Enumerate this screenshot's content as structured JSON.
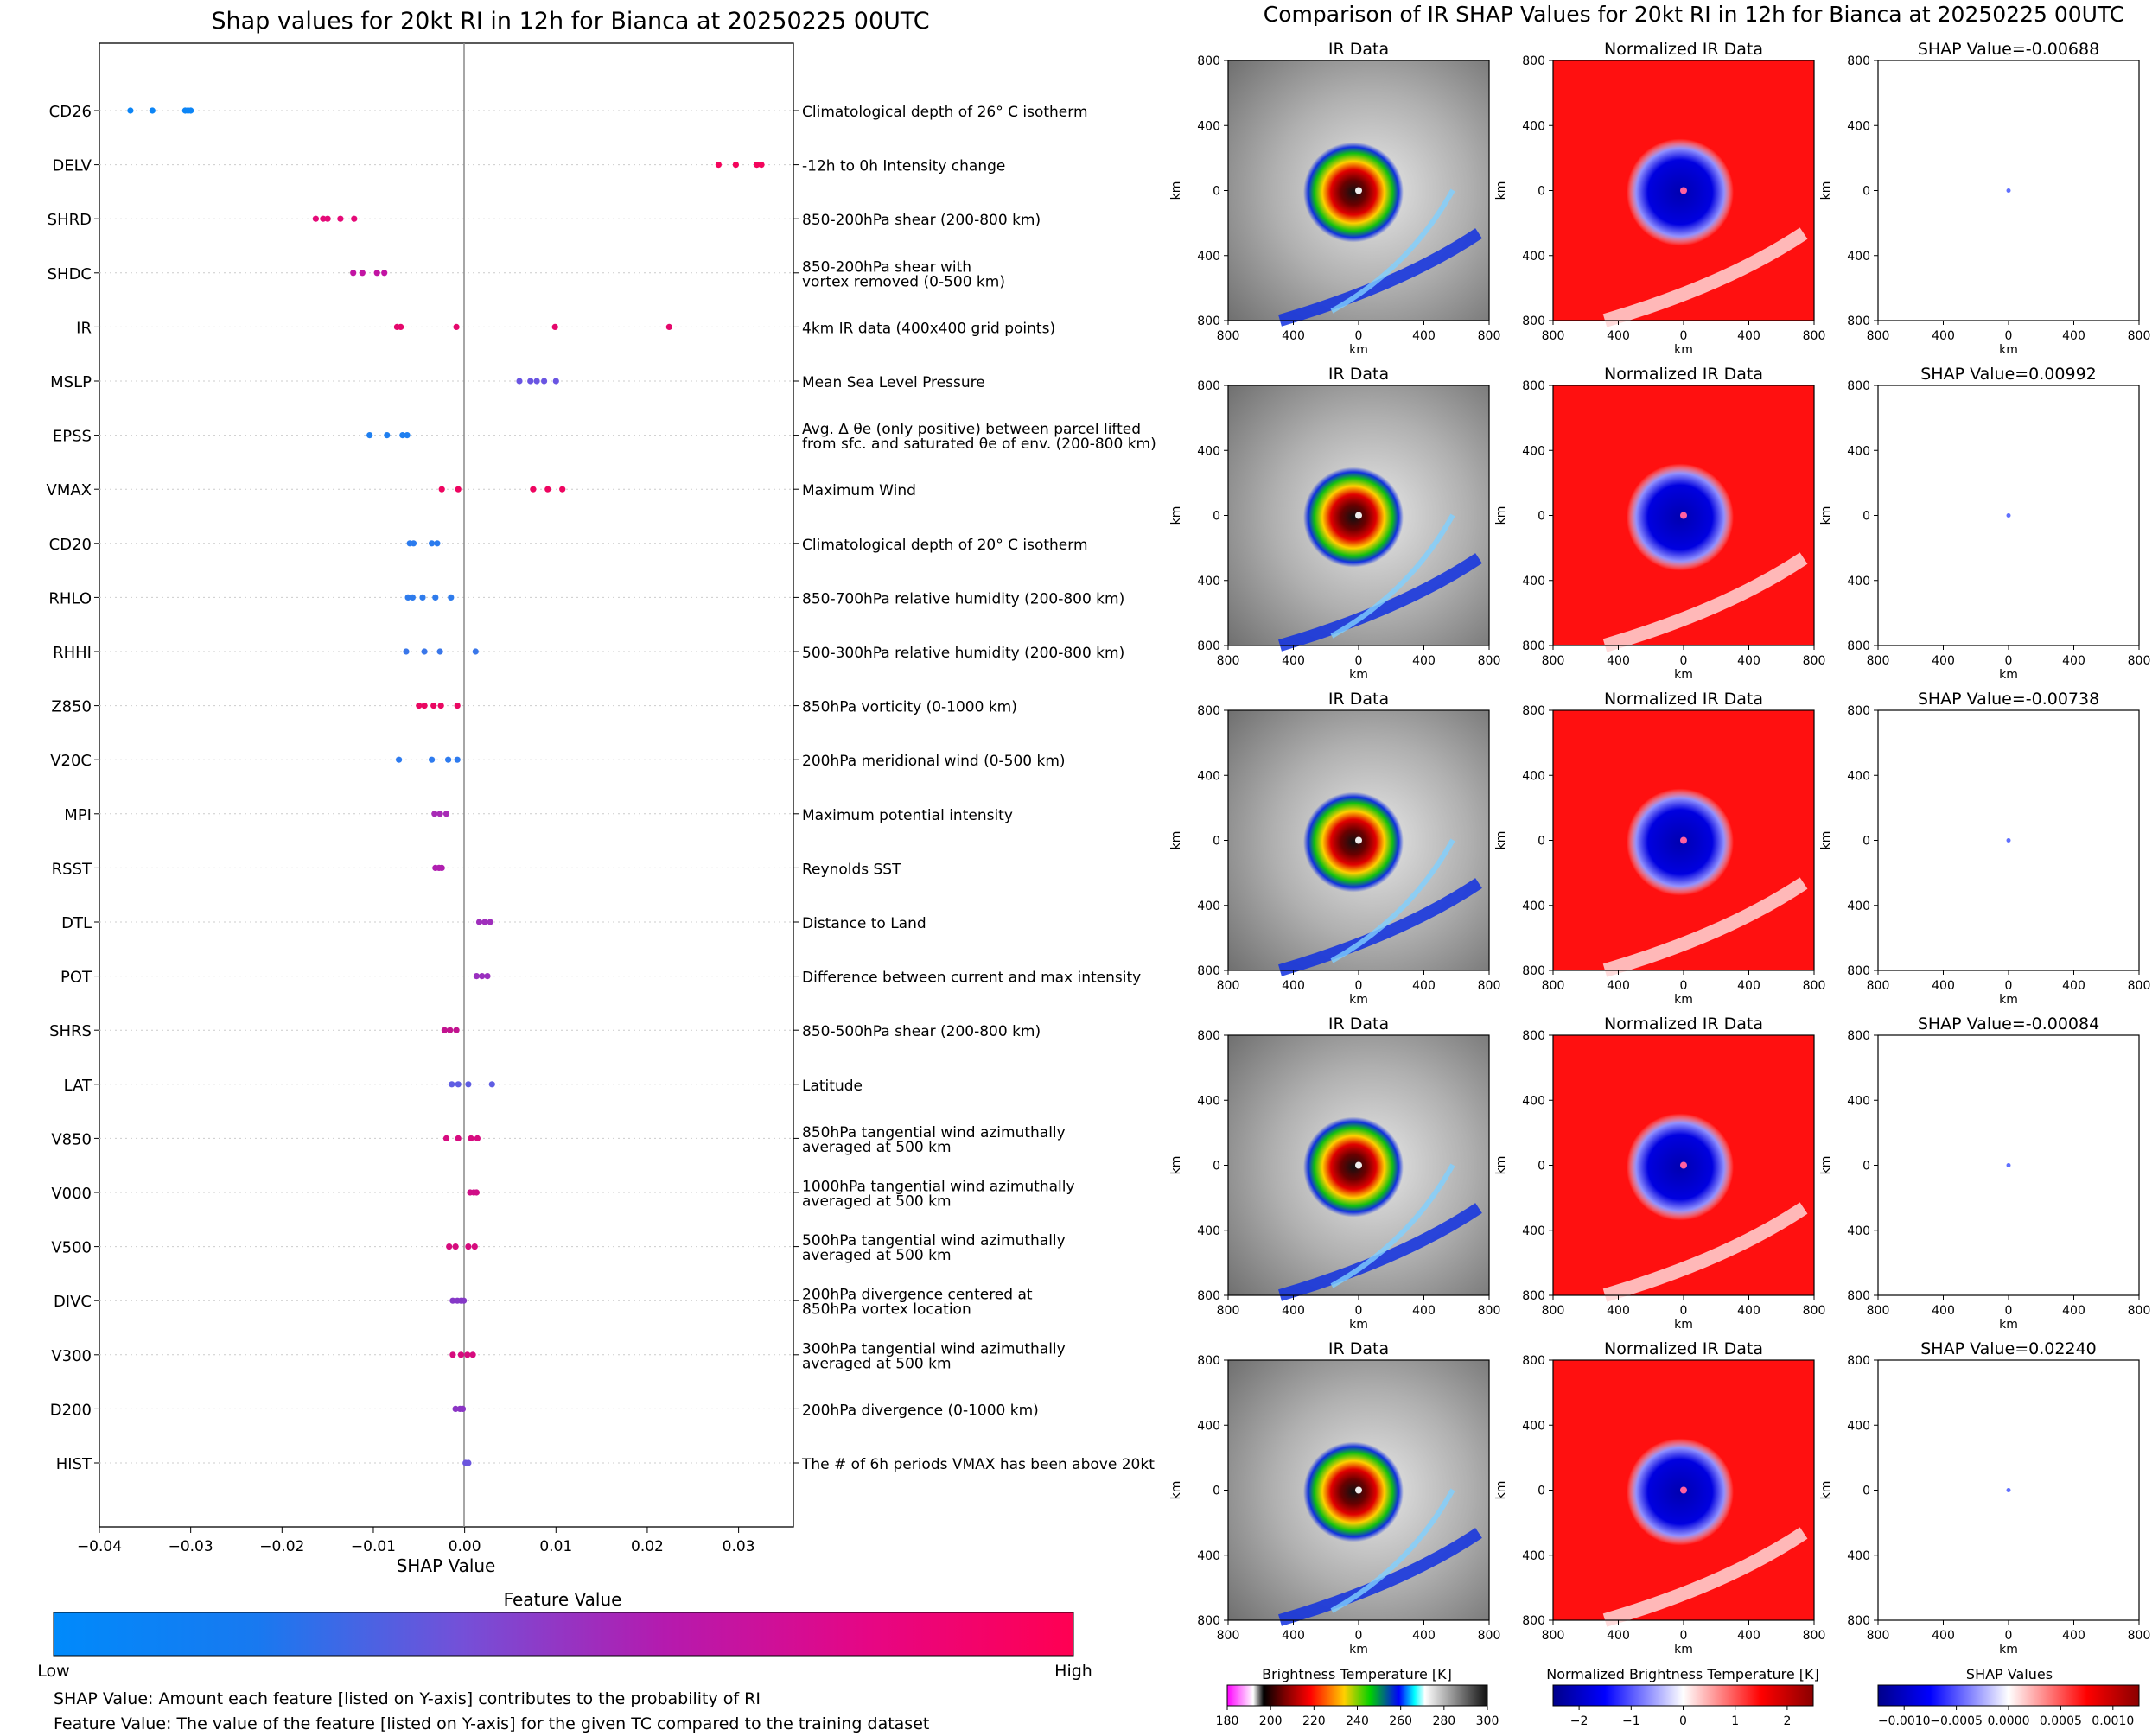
{
  "left_title": "Shap values for 20kt RI in 12h for Bianca at 20250225 00UTC",
  "right_title": "Comparison of IR SHAP Values for 20kt RI in 12h for Bianca at 20250225 00UTC",
  "colorbar": {
    "title": "Feature Value",
    "low_label": "Low",
    "high_label": "High",
    "low_color": "#008afb",
    "high_color": "#ff0052"
  },
  "notes": [
    "SHAP Value: Amount each feature [listed on Y-axis] contributes to the probability of RI",
    "Feature Value: The value of the feature [listed on Y-axis] for the given TC compared to the training dataset"
  ],
  "panels": {
    "col_titles": [
      "IR Data",
      "Normalized IR Data"
    ],
    "shap_title_prefix": "SHAP Value=",
    "shap_values": [
      "-0.00688",
      "0.00992",
      "-0.00738",
      "-0.00084",
      "0.02240"
    ],
    "axis_label": "km",
    "tick_labels": [
      "800",
      "400",
      "0",
      "400",
      "800"
    ],
    "cbar_ir": {
      "title": "Brightness Temperature [K]",
      "ticks": [
        "180",
        "200",
        "220",
        "240",
        "260",
        "280",
        "300"
      ]
    },
    "cbar_norm": {
      "title": "Normalized Brightness Temperature [K]",
      "ticks": [
        "−2",
        "−1",
        "0",
        "1",
        "2"
      ]
    },
    "cbar_shap": {
      "title": "SHAP Values",
      "ticks": [
        "−0.0010",
        "−0.0005",
        "0.0000",
        "0.0005",
        "0.0010"
      ]
    }
  },
  "chart_data": {
    "type": "scatter",
    "title": "Shap values for 20kt RI in 12h for Bianca at 20250225 00UTC",
    "xlabel": "SHAP Value",
    "ylabel": "",
    "xlim": [
      -0.04,
      0.036
    ],
    "x_ticks": [
      -0.04,
      -0.03,
      -0.02,
      -0.01,
      0.0,
      0.01,
      0.02,
      0.03
    ],
    "x_tick_labels": [
      "−0.04",
      "−0.03",
      "−0.02",
      "−0.01",
      "0.00",
      "0.01",
      "0.02",
      "0.03"
    ],
    "grid": "horizontal dotted",
    "zero_line": 0.0,
    "features": [
      {
        "name": "CD26",
        "description": [
          "Climatological depth of 26° C isotherm"
        ],
        "color": "#0c85f6",
        "shap": [
          -0.0366,
          -0.0342,
          -0.0306,
          -0.0303,
          -0.03
        ]
      },
      {
        "name": "DELV",
        "description": [
          "-12h to 0h Intensity change"
        ],
        "color": "#f4055c",
        "shap": [
          0.0278,
          0.0297,
          0.032,
          0.0325
        ]
      },
      {
        "name": "SHRD",
        "description": [
          "850-200hPa shear (200-800 km)"
        ],
        "color": "#e50a78",
        "shap": [
          -0.0163,
          -0.0155,
          -0.015,
          -0.0136,
          -0.0121
        ]
      },
      {
        "name": "SHDC",
        "description": [
          "850-200hPa shear with",
          "vortex removed (0-500 km)"
        ],
        "color": "#c214a3",
        "shap": [
          -0.0122,
          -0.0112,
          -0.0096,
          -0.0088
        ]
      },
      {
        "name": "IR",
        "description": [
          "4km IR data (400x400 grid points)"
        ],
        "color": "#e5086c",
        "shap": [
          -0.0074,
          -0.007,
          -0.0009,
          0.0099,
          0.0224
        ]
      },
      {
        "name": "MSLP",
        "description": [
          "Mean Sea Level Pressure"
        ],
        "color": "#6a55e2",
        "shap": [
          0.006,
          0.0072,
          0.0079,
          0.0087,
          0.01
        ]
      },
      {
        "name": "EPSS",
        "description": [
          "Avg. Δ θe (only positive) between parcel lifted",
          "from sfc. and saturated θe of env. (200-800 km)"
        ],
        "color": "#1f7ff0",
        "shap": [
          -0.0104,
          -0.0085,
          -0.0068,
          -0.0063
        ]
      },
      {
        "name": "VMAX",
        "description": [
          "Maximum Wind"
        ],
        "color": "#ee0560",
        "shap": [
          -0.0025,
          -0.0007,
          0.0075,
          0.0091,
          0.0107
        ]
      },
      {
        "name": "CD20",
        "description": [
          "Climatological depth of 20° C isotherm"
        ],
        "color": "#2b7bee",
        "shap": [
          -0.006,
          -0.0056,
          -0.0036,
          -0.003
        ]
      },
      {
        "name": "RHLO",
        "description": [
          "850-700hPa relative humidity (200-800 km)"
        ],
        "color": "#2e7bec",
        "shap": [
          -0.0062,
          -0.0057,
          -0.0046,
          -0.0032,
          -0.0015
        ]
      },
      {
        "name": "RHHI",
        "description": [
          "500-300hPa relative humidity (200-800 km)"
        ],
        "color": "#3a77ea",
        "shap": [
          -0.0064,
          -0.0044,
          -0.0027,
          0.0012
        ]
      },
      {
        "name": "Z850",
        "description": [
          "850hPa vorticity (0-1000 km)"
        ],
        "color": "#ea0862",
        "shap": [
          -0.005,
          -0.0044,
          -0.0034,
          -0.0026,
          -0.0008
        ]
      },
      {
        "name": "V20C",
        "description": [
          "200hPa meridional wind (0-500 km)"
        ],
        "color": "#2e7bef",
        "shap": [
          -0.0072,
          -0.0036,
          -0.0018,
          -0.0008
        ]
      },
      {
        "name": "MPI",
        "description": [
          "Maximum potential intensity"
        ],
        "color": "#a82bb6",
        "shap": [
          -0.0033,
          -0.0027,
          -0.002
        ]
      },
      {
        "name": "RSST",
        "description": [
          "Reynolds SST"
        ],
        "color": "#b01fb0",
        "shap": [
          -0.0032,
          -0.0028,
          -0.0025
        ]
      },
      {
        "name": "DTL",
        "description": [
          "Distance to Land"
        ],
        "color": "#9f2ebc",
        "shap": [
          0.0016,
          0.0022,
          0.0028
        ]
      },
      {
        "name": "POT",
        "description": [
          "Difference between current and max intensity"
        ],
        "color": "#9a30bf",
        "shap": [
          0.0013,
          0.0019,
          0.0025
        ]
      },
      {
        "name": "SHRS",
        "description": [
          "850-500hPa shear (200-800 km)"
        ],
        "color": "#c2138f",
        "shap": [
          -0.0022,
          -0.0016,
          -0.0009
        ]
      },
      {
        "name": "LAT",
        "description": [
          "Latitude"
        ],
        "color": "#5f5de3",
        "shap": [
          -0.0014,
          -0.0007,
          0.0004,
          0.003
        ]
      },
      {
        "name": "V850",
        "description": [
          "850hPa tangential wind azimuthally",
          "averaged at 500 km"
        ],
        "color": "#d70c80",
        "shap": [
          -0.002,
          -0.0007,
          0.0007,
          0.0014
        ]
      },
      {
        "name": "V000",
        "description": [
          "1000hPa tangential wind azimuthally",
          "averaged at 500 km"
        ],
        "color": "#d00e87",
        "shap": [
          0.0006,
          0.001,
          0.0013
        ]
      },
      {
        "name": "V500",
        "description": [
          "500hPa tangential wind azimuthally",
          "averaged at 500 km"
        ],
        "color": "#d60c7e",
        "shap": [
          -0.0017,
          -0.001,
          0.0004,
          0.0011
        ]
      },
      {
        "name": "DIVC",
        "description": [
          "200hPa divergence centered at",
          "850hPa vortex location"
        ],
        "color": "#8538c7",
        "shap": [
          -0.0013,
          -0.0008,
          -0.0004,
          -0.0001
        ]
      },
      {
        "name": "V300",
        "description": [
          "300hPa tangential wind azimuthally",
          "averaged at 500 km"
        ],
        "color": "#d60c7e",
        "shap": [
          -0.0013,
          -0.0004,
          0.0003,
          0.0009
        ]
      },
      {
        "name": "D200",
        "description": [
          "200hPa divergence (0-1000 km)"
        ],
        "color": "#8b35c5",
        "shap": [
          -0.001,
          -0.0005,
          -0.0002
        ]
      },
      {
        "name": "HIST",
        "description": [
          "The # of 6h periods VMAX has been above 20kt"
        ],
        "color": "#6b55de",
        "shap": [
          0.0001,
          0.0004
        ]
      }
    ]
  }
}
